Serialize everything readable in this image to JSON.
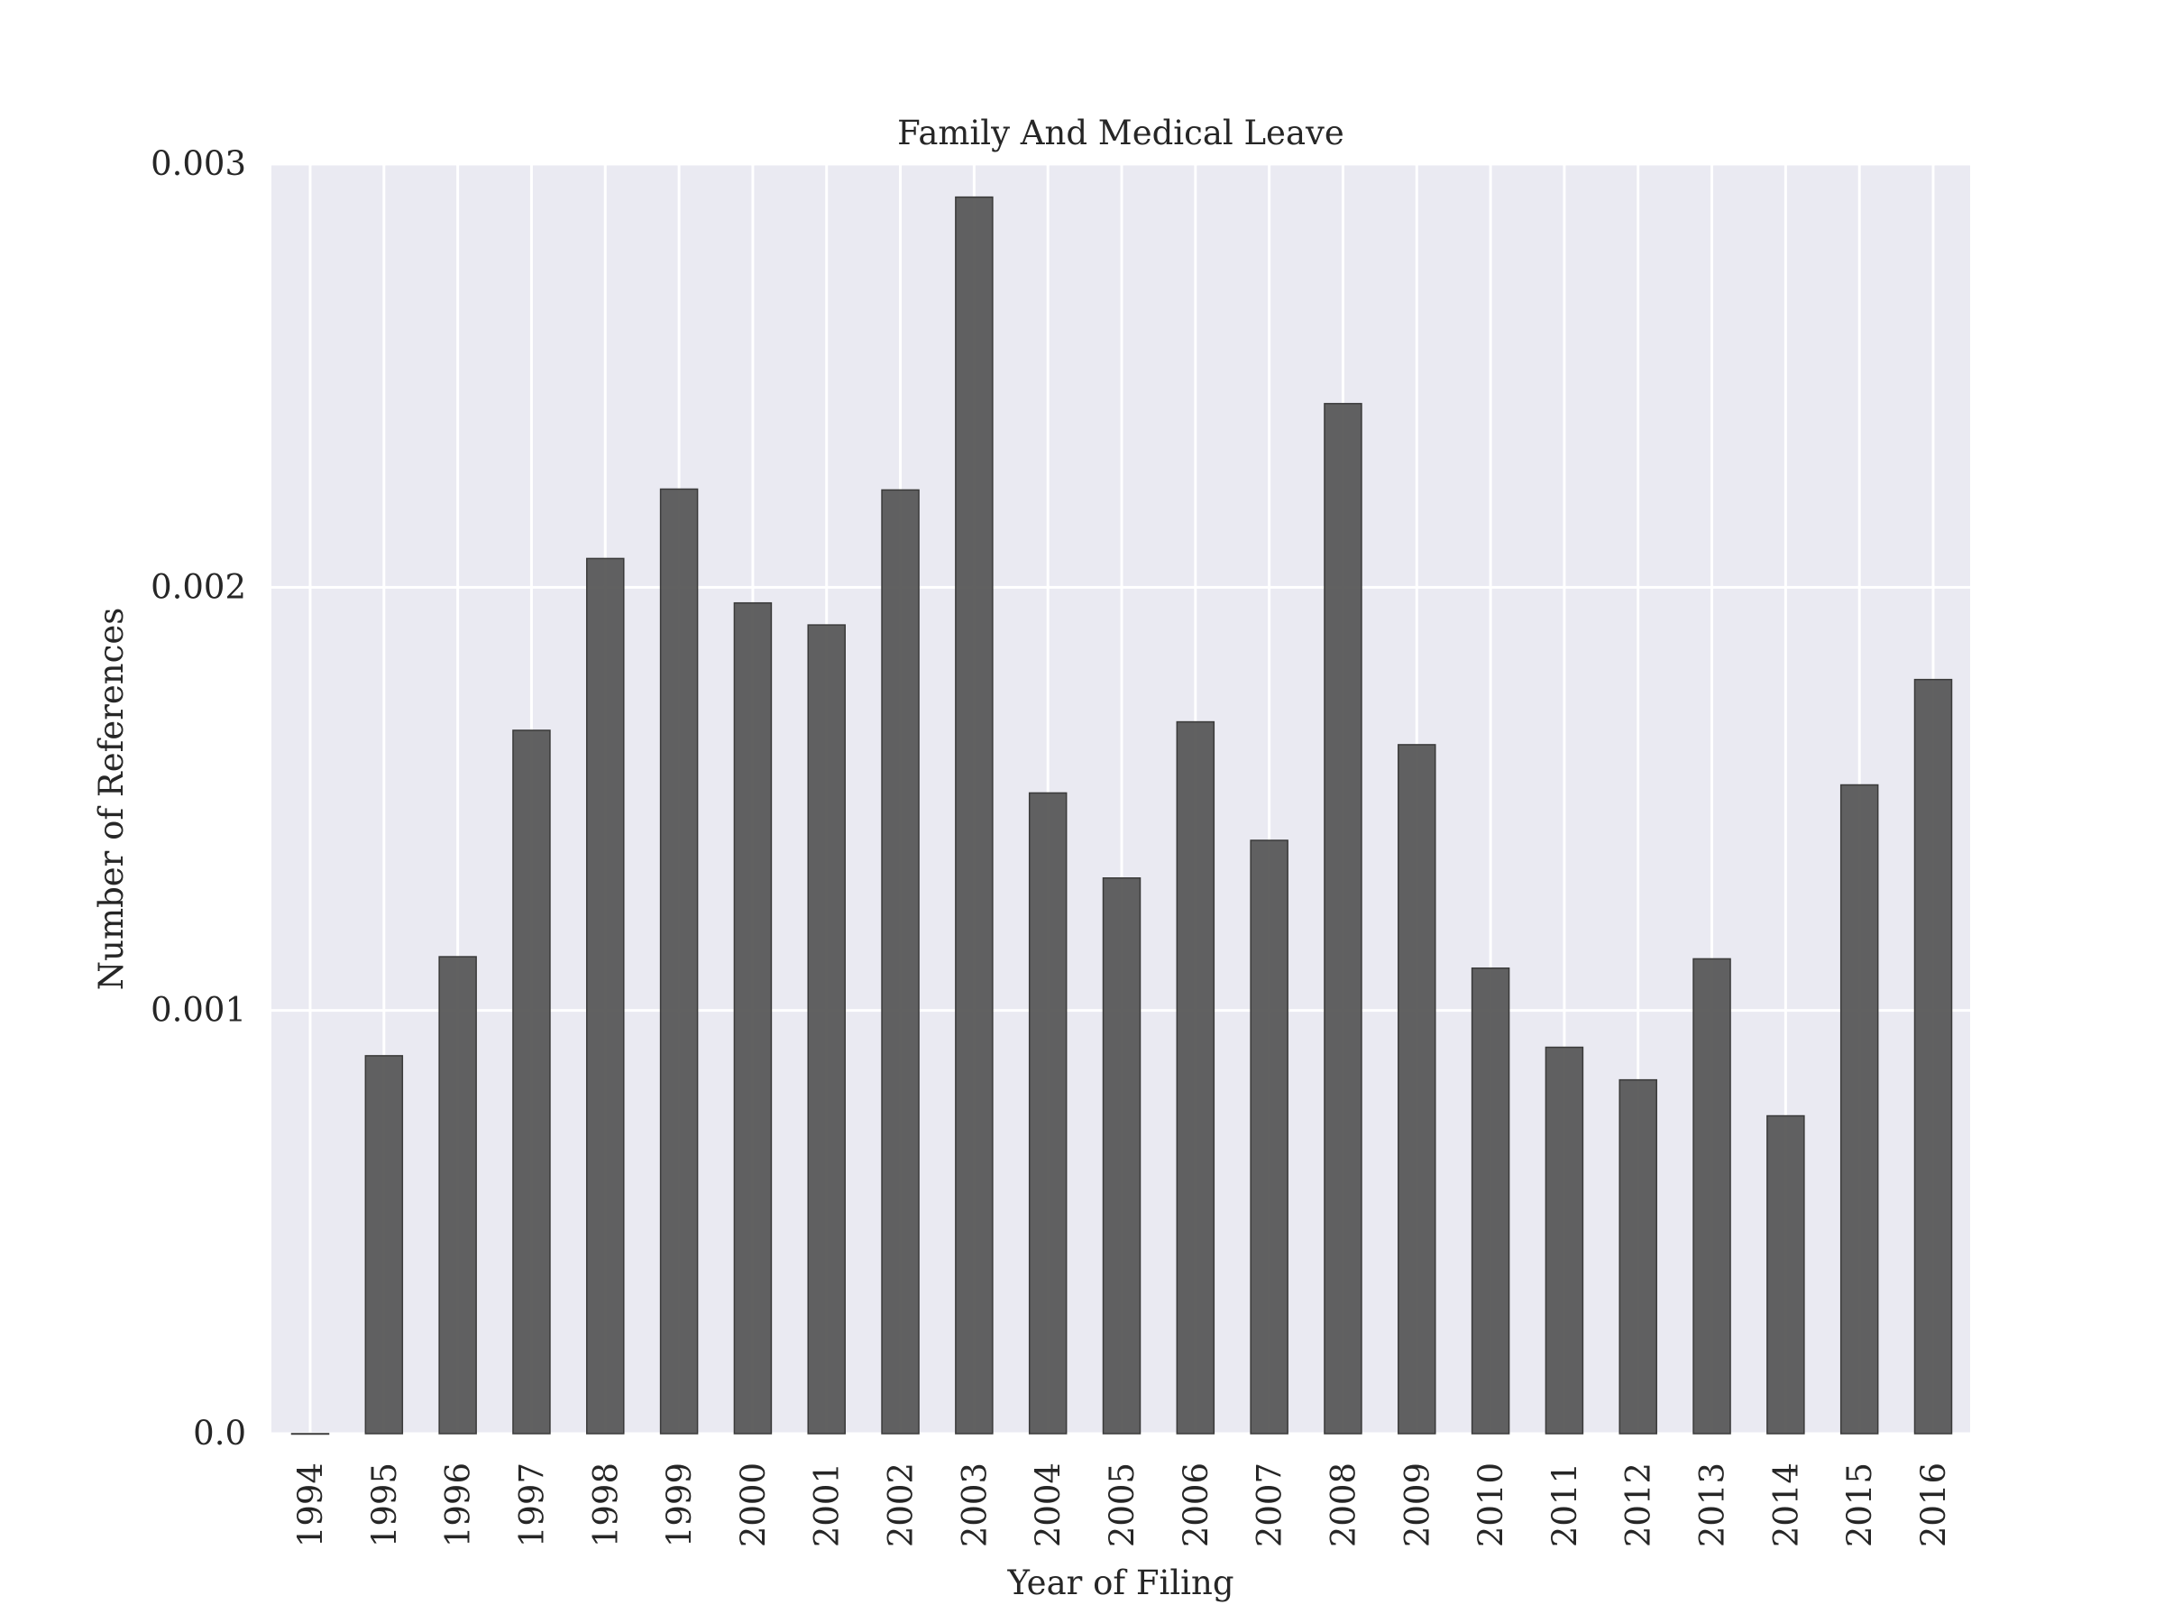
{
  "chart_data": {
    "type": "bar",
    "title": "Family And Medical Leave",
    "xlabel": "Year of Filing",
    "ylabel": "Number of References",
    "categories": [
      "1994",
      "1995",
      "1996",
      "1997",
      "1998",
      "1999",
      "2000",
      "2001",
      "2002",
      "2003",
      "2004",
      "2005",
      "2006",
      "2007",
      "2008",
      "2009",
      "2010",
      "2011",
      "2012",
      "2013",
      "2014",
      "2015",
      "2016"
    ],
    "values": [
      0.0,
      0.000893,
      0.001127,
      0.001662,
      0.002068,
      0.002232,
      0.001963,
      0.001911,
      0.00223,
      0.002922,
      0.001514,
      0.001313,
      0.001682,
      0.001402,
      0.002434,
      0.001628,
      0.0011,
      0.000913,
      0.000836,
      0.001122,
      0.000751,
      0.001533,
      0.001782
    ],
    "ylim": [
      0,
      0.003
    ],
    "yticks": [
      0.0,
      0.001,
      0.002,
      0.003
    ],
    "ytick_labels": [
      "0.0",
      "0.001",
      "0.002",
      "0.003"
    ],
    "grid": true,
    "legend": "none",
    "colors": {
      "plot_background": "#eaeaf2",
      "grid": "#ffffff",
      "bar_fill": "#595959",
      "bar_edge": "#3a3a3a",
      "text": "#262626"
    }
  }
}
